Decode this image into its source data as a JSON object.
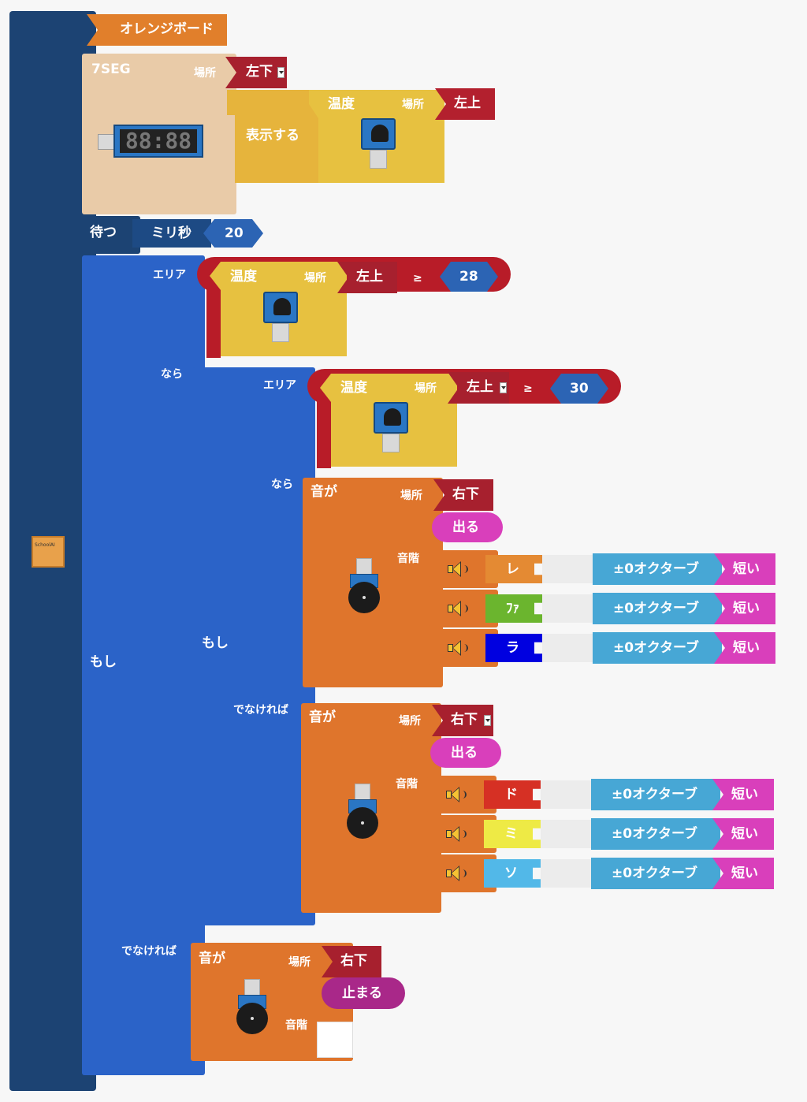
{
  "board": {
    "name": "オレンジボード",
    "icon_label": "SchoolAI"
  },
  "seg": {
    "title": "7SEG",
    "place_label": "場所",
    "place": "左下",
    "display_label": "表示する",
    "digits": "88:88"
  },
  "temp_block": {
    "label": "温度",
    "place_label": "場所",
    "place": "左上"
  },
  "wait": {
    "label": "待つ",
    "unit": "ミリ秒",
    "value": "20"
  },
  "if_outer": {
    "label": "もし",
    "area": "エリア",
    "then": "なら",
    "else": "でなければ",
    "cond": {
      "sensor": "温度",
      "place_label": "場所",
      "place": "左上",
      "op": "≥",
      "value": "28"
    }
  },
  "if_inner": {
    "label": "もし",
    "area": "エリア",
    "then": "なら",
    "else": "でなければ",
    "cond": {
      "sensor": "温度",
      "place_label": "場所",
      "place": "左上",
      "op": "≥",
      "value": "30"
    }
  },
  "sound_then": {
    "label": "音が",
    "place_label": "場所",
    "place": "右下",
    "action": "出る",
    "scale_label": "音階",
    "notes": [
      {
        "note": "レ",
        "color": "#e48a33",
        "octave": "±0オクターブ",
        "len": "短い"
      },
      {
        "note": "ﾌｧ",
        "color": "#6bb52e",
        "octave": "±0オクターブ",
        "len": "短い"
      },
      {
        "note": "ラ",
        "color": "#0000e0",
        "octave": "±0オクターブ",
        "len": "短い"
      }
    ]
  },
  "sound_else": {
    "label": "音が",
    "place_label": "場所",
    "place": "右下",
    "action": "出る",
    "scale_label": "音階",
    "notes": [
      {
        "note": "ド",
        "color": "#d63024",
        "octave": "±0オクターブ",
        "len": "短い"
      },
      {
        "note": "ミ",
        "color": "#eeea45",
        "octave": "±0オクターブ",
        "len": "短い"
      },
      {
        "note": "ソ",
        "color": "#52b8e8",
        "octave": "±0オクターブ",
        "len": "短い"
      }
    ]
  },
  "sound_stop": {
    "label": "音が",
    "place_label": "場所",
    "place": "右下",
    "action": "止まる",
    "scale_label": "音階"
  }
}
